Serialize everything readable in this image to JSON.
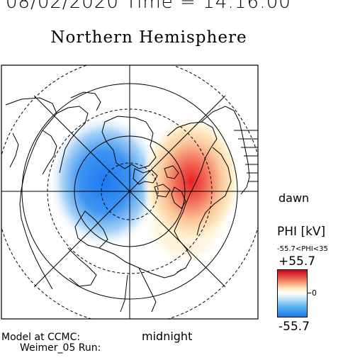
{
  "header": {
    "datetime": "08/02/2020 Time = 14:16:00",
    "title": "Northern Hemisphere"
  },
  "map": {
    "orientation_labels": {
      "dawn": "dawn",
      "midnight": "midnight"
    },
    "projection": "polar-north",
    "potential_pattern": {
      "negative_cell": {
        "sign": "negative",
        "color": "#1e78f0"
      },
      "positive_cell": {
        "sign": "positive",
        "color": "#e8202a"
      }
    }
  },
  "colorbar": {
    "title": "PHI [kV]",
    "range_label": "-55.7<PHI<35",
    "max_label": "+55.7",
    "min_label": "-55.7",
    "zero_label": "0",
    "colors": [
      "#c8001c",
      "#f07a5a",
      "#fdebc4",
      "#ffffff",
      "#c8e8f8",
      "#55b0f0",
      "#1e78f0"
    ]
  },
  "footer": {
    "line1": "Model at CCMC:",
    "line2": "Weimer_05 Run:"
  }
}
